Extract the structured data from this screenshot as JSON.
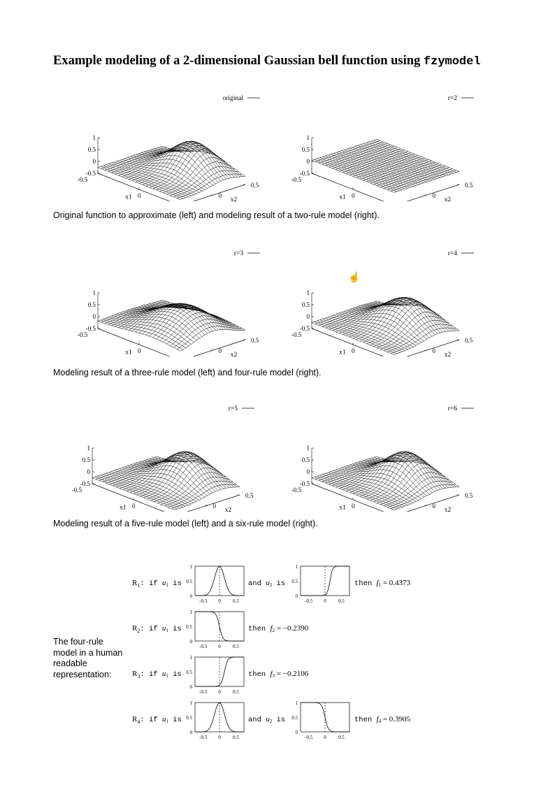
{
  "title": {
    "text": "Example modeling of a 2-dimensional Gaussian bell function using ",
    "code": "fzymodel"
  },
  "plots": [
    {
      "key": "original",
      "legend": "original"
    },
    {
      "key": "r2",
      "legend": "r=2"
    },
    {
      "key": "r3",
      "legend": "r=3"
    },
    {
      "key": "r4",
      "legend": "r=4"
    },
    {
      "key": "r5",
      "legend": "r=5"
    },
    {
      "key": "r6",
      "legend": "r=6"
    }
  ],
  "axes": {
    "z_ticks": [
      "1",
      "0.5",
      "0",
      "-0.5"
    ],
    "x1_label": "x1",
    "x2_label": "x2",
    "x1_ticks": [
      "-0.5",
      "0",
      "0.5"
    ],
    "x2_ticks": [
      "-0.5",
      "0",
      "0.5"
    ]
  },
  "captions": [
    "Original function to approximate (left) and modeling result of a two-rule model (right).",
    "Modeling result of a three-rule model (left) and four-rule model (right).",
    "Modeling result of a five-rule model (left) and a six-rule model (right)."
  ],
  "side_label": "The four-rule model in a human readable representation:",
  "rules": {
    "y_ticks": [
      "1",
      "0.5",
      "0"
    ],
    "x_ticks": [
      "-0.5",
      "0",
      "0.5"
    ],
    "items": [
      {
        "r": "R",
        "sub": "1",
        "if": ": if ",
        "u1": "u",
        "is": " is",
        "and": "and ",
        "u2": "u",
        "then": "then ",
        "f": "f",
        "fsub": "1",
        "eq": " = 0.4373"
      },
      {
        "r": "R",
        "sub": "2",
        "if": ": if ",
        "u1": "u",
        "is": " is",
        "then": "then ",
        "f": "f",
        "fsub": "2",
        "eq": " = −0.2390"
      },
      {
        "r": "R",
        "sub": "3",
        "if": ": if ",
        "u1": "u",
        "is": " is",
        "then": "then ",
        "f": "f",
        "fsub": "3",
        "eq": " = −0.2106"
      },
      {
        "r": "R",
        "sub": "4",
        "if": ": if ",
        "u1": "u",
        "is": " is",
        "and": "and ",
        "u2": "u",
        "then": "then ",
        "f": "f",
        "fsub": "4",
        "eq": " = 0.3905"
      }
    ]
  }
}
